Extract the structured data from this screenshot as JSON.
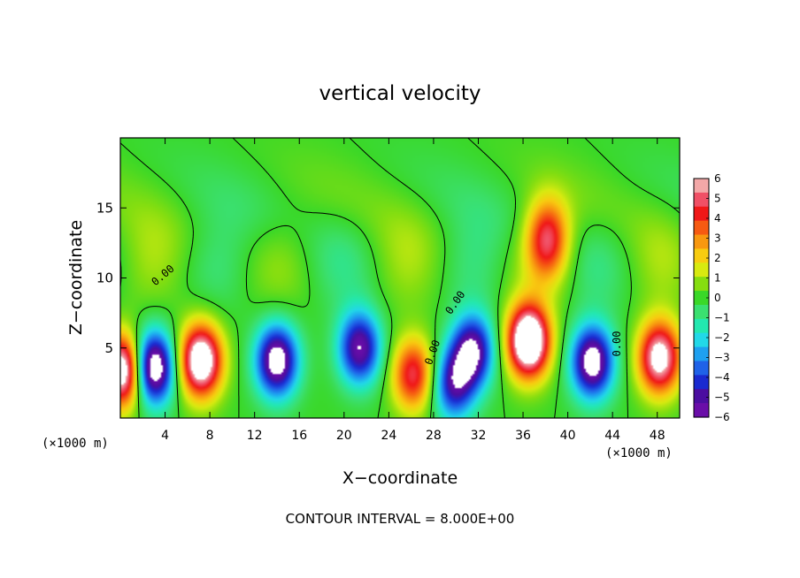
{
  "chart_data": {
    "type": "heatmap",
    "title": "vertical velocity",
    "xlabel": "X−coordinate",
    "ylabel": "Z−coordinate",
    "x_unit_note_left": "(×1000 m)",
    "x_unit_note_right": "(×1000 m)",
    "xlim": [
      0,
      50
    ],
    "ylim": [
      0,
      20
    ],
    "x_ticks": [
      4,
      8,
      12,
      16,
      20,
      24,
      28,
      32,
      36,
      40,
      44,
      48
    ],
    "y_ticks": [
      5,
      10,
      15
    ],
    "colorbar": {
      "ticks": [
        6,
        5,
        4,
        3,
        2,
        1,
        0,
        -1,
        -2,
        -3,
        -4,
        -5,
        -6
      ],
      "tick_labels": [
        "6",
        "5",
        "4",
        "3",
        "2",
        "1",
        "0",
        "−1",
        "−2",
        "−3",
        "−4",
        "−5",
        "−6"
      ],
      "colors": [
        "#6a0da8",
        "#4b0ea0",
        "#1a2ad0",
        "#1f62e8",
        "#1ea0f0",
        "#22d8e8",
        "#23e8b0",
        "#3ae070",
        "#3ad828",
        "#86de10",
        "#d8ea10",
        "#f8cc10",
        "#f89810",
        "#f65a12",
        "#f01818",
        "#f05066",
        "#f3a8a8"
      ],
      "range": [
        -6,
        6
      ]
    },
    "contour_label": "0.00",
    "footer": "CONTOUR INTERVAL = 8.000E+00",
    "features": [
      {
        "x": 0.3,
        "z": 3.4,
        "w": 8
      },
      {
        "x": 2.9,
        "z": 3.6,
        "w": -8
      },
      {
        "x": 7.2,
        "z": 4.1,
        "w": 8
      },
      {
        "x": 14.0,
        "z": 4.1,
        "w": -7
      },
      {
        "x": 21.4,
        "z": 5.0,
        "w": -6
      },
      {
        "x": 26.2,
        "z": 3.1,
        "w": 5
      },
      {
        "x": 29.8,
        "z": 2.4,
        "w": -5
      },
      {
        "x": 31.5,
        "z": 4.8,
        "w": -6
      },
      {
        "x": 36.5,
        "z": 5.5,
        "w": 9
      },
      {
        "x": 38.2,
        "z": 12.8,
        "w": 5
      },
      {
        "x": 42.2,
        "z": 4.0,
        "w": -7
      },
      {
        "x": 48.2,
        "z": 4.3,
        "w": 7
      }
    ]
  }
}
